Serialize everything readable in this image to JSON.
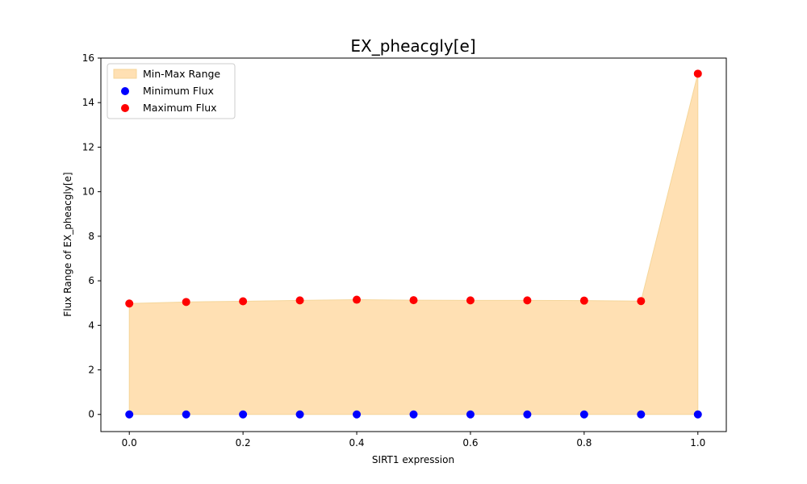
{
  "chart_data": {
    "type": "scatter",
    "title": "EX_pheacgly[e]",
    "xlabel": "SIRT1 expression",
    "ylabel": "Flux Range of EX_pheacgly[e]",
    "xlim": [
      -0.05,
      1.05
    ],
    "ylim": [
      -0.77,
      16.0
    ],
    "xticks": [
      "0.0",
      "0.2",
      "0.4",
      "0.6",
      "0.8",
      "1.0"
    ],
    "yticks": [
      "0",
      "2",
      "4",
      "6",
      "8",
      "10",
      "12",
      "14",
      "16"
    ],
    "grid": false,
    "legend_position": "top-left",
    "x": [
      0.0,
      0.1,
      0.2,
      0.3,
      0.4,
      0.5,
      0.6,
      0.7,
      0.8,
      0.9,
      1.0
    ],
    "series": [
      {
        "name": "Min-Max Range",
        "kind": "fill_between",
        "color": "#ffe0b3",
        "edge_color": "#f5d69a",
        "lower": [
          0,
          0,
          0,
          0,
          0,
          0,
          0,
          0,
          0,
          0,
          0
        ],
        "upper": [
          4.98,
          5.05,
          5.08,
          5.12,
          5.15,
          5.13,
          5.12,
          5.12,
          5.11,
          5.09,
          15.3
        ]
      },
      {
        "name": "Minimum Flux",
        "kind": "scatter",
        "color": "#0000ff",
        "values": [
          0,
          0,
          0,
          0,
          0,
          0,
          0,
          0,
          0,
          0,
          0
        ]
      },
      {
        "name": "Maximum Flux",
        "kind": "scatter",
        "color": "#ff0000",
        "values": [
          4.98,
          5.05,
          5.08,
          5.12,
          5.15,
          5.13,
          5.12,
          5.12,
          5.11,
          5.09,
          15.3
        ]
      }
    ]
  }
}
